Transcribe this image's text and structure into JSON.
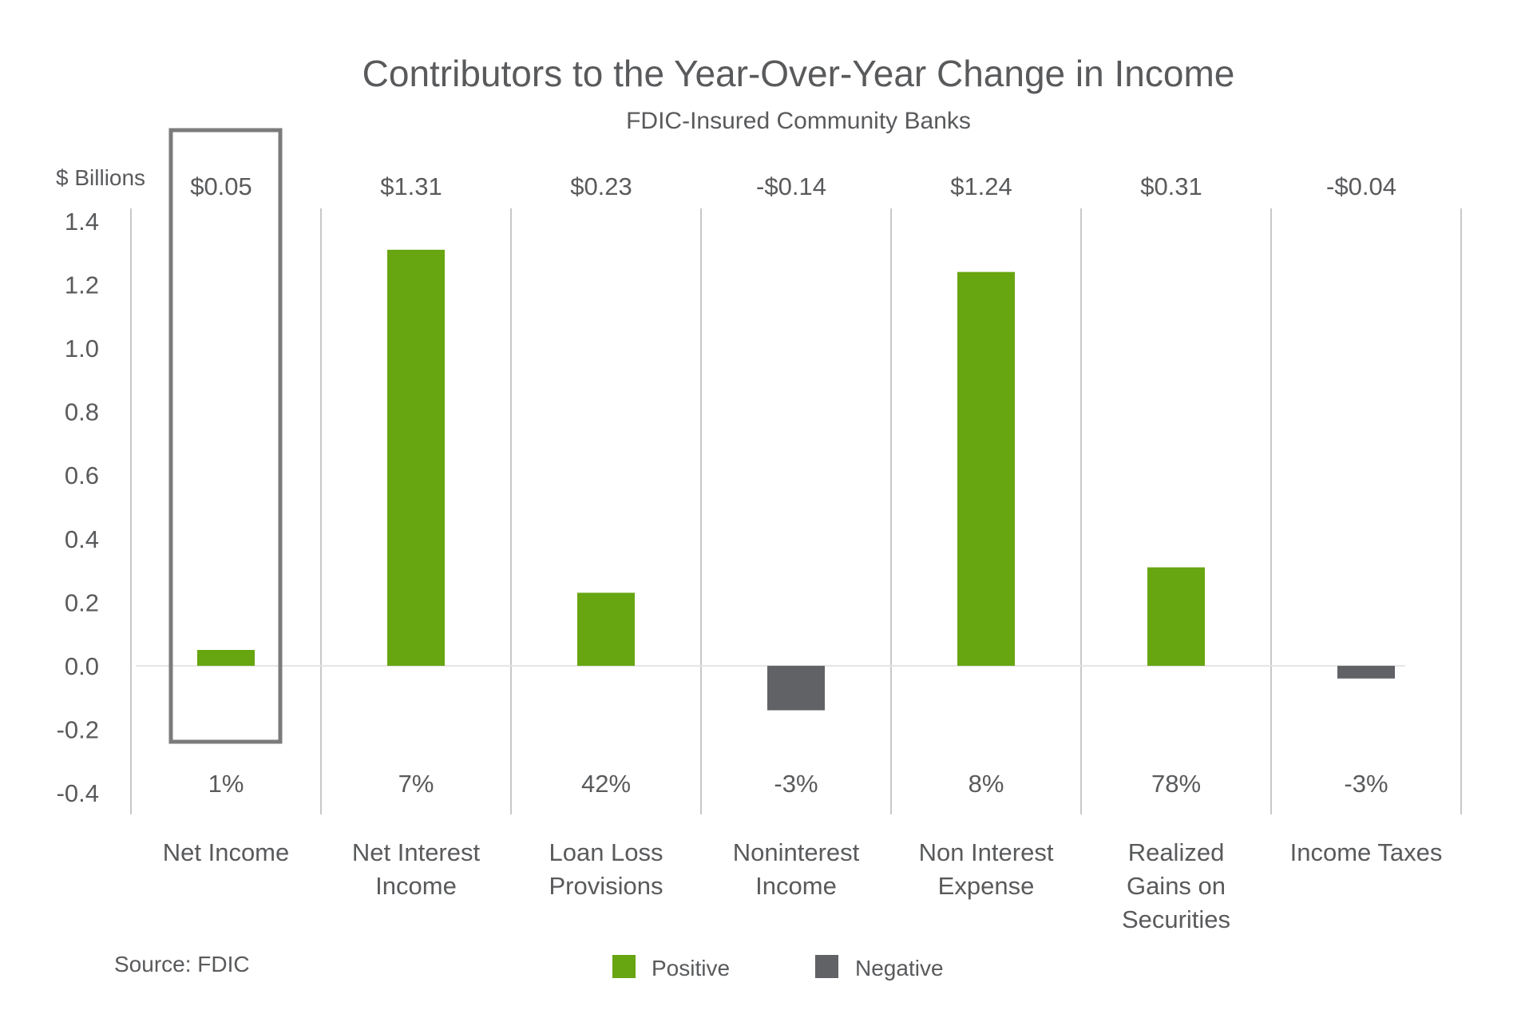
{
  "chart_data": {
    "type": "bar",
    "title": "Contributors to the Year-Over-Year Change in Income",
    "subtitle": "FDIC-Insured Community Banks",
    "ylabel": "$ Billions",
    "xlabel": "",
    "ylim": [
      -0.4,
      1.4
    ],
    "yticks": [
      1.4,
      1.2,
      1.0,
      0.8,
      0.6,
      0.4,
      0.2,
      0.0,
      -0.2,
      -0.4
    ],
    "ytick_labels": [
      "1.4",
      "1.2",
      "1.0",
      "0.8",
      "0.6",
      "0.4",
      "0.2",
      "0.0",
      "-0.2",
      "-0.4"
    ],
    "grid": false,
    "legend_position": "bottom-center",
    "categories": [
      "Net Income",
      "Net Interest Income",
      "Loan Loss Provisions",
      "Noninterest Income",
      "Non Interest Expense",
      "Realized Gains on Securities",
      "Income Taxes"
    ],
    "category_label_lines": [
      [
        "Net Income"
      ],
      [
        "Net Interest",
        "Income"
      ],
      [
        "Loan Loss",
        "Provisions"
      ],
      [
        "Noninterest",
        "Income"
      ],
      [
        "Non Interest",
        "Expense"
      ],
      [
        "Realized",
        "Gains on",
        "Securities"
      ],
      [
        "Income Taxes"
      ]
    ],
    "values": [
      0.05,
      1.31,
      0.23,
      -0.14,
      1.24,
      0.31,
      -0.04
    ],
    "value_labels": [
      "$0.05",
      "$1.31",
      "$0.23",
      "-$0.14",
      "$1.24",
      "$0.31",
      "-$0.04"
    ],
    "percent_labels": [
      "1%",
      "7%",
      "42%",
      "-3%",
      "8%",
      "78%",
      "-3%"
    ],
    "highlighted_category": "Net Income",
    "legend": [
      {
        "name": "Positive",
        "color": "#67a511"
      },
      {
        "name": "Negative",
        "color": "#616265"
      }
    ],
    "colors": {
      "positive": "#67a511",
      "negative": "#616265",
      "text": "#595a5c",
      "divider": "#c8c8c8",
      "highlight_box": "#7b7b7b"
    },
    "source": "Source: FDIC"
  }
}
